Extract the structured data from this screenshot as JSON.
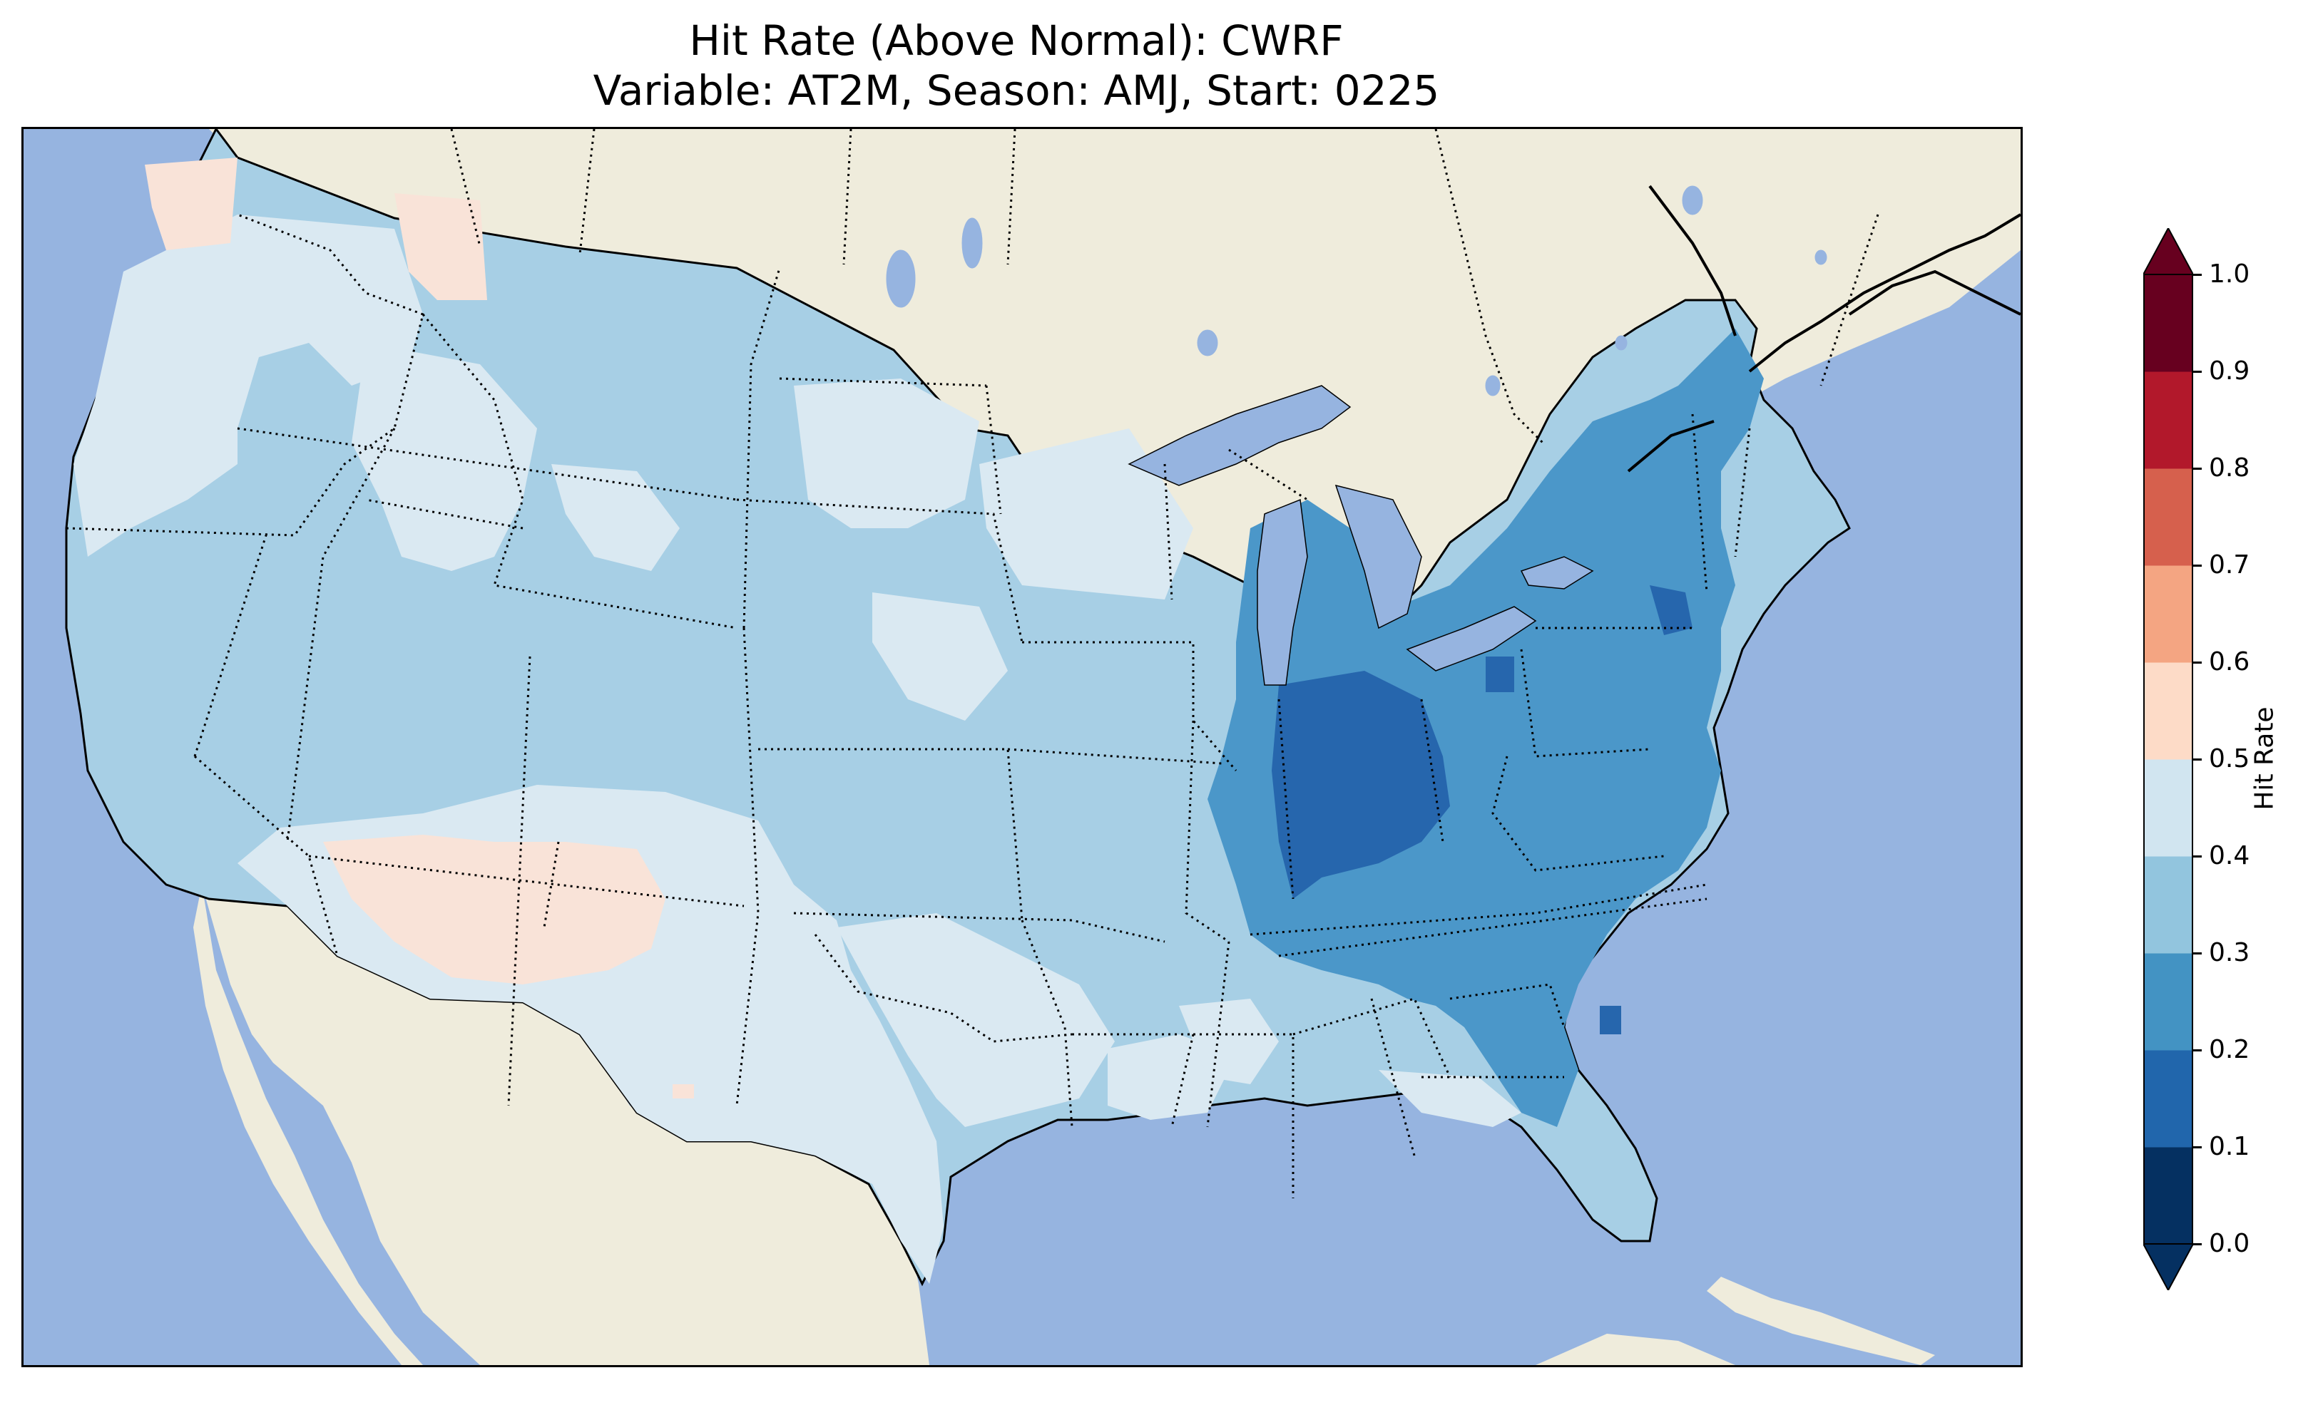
{
  "title": {
    "line1": "Hit Rate (Above Normal): CWRF",
    "line2": "Variable: AT2M, Season: AMJ, Start: 0225"
  },
  "map": {
    "projection": "Lambert Conformal, contiguous United States",
    "ocean_color": "#96b4e0",
    "land_color": "#efecdc",
    "state_borders": "dotted",
    "coastlines": "solid black",
    "field": {
      "variable": "AT2M",
      "season": "AMJ",
      "start": "0225",
      "dominant_range": "0.3-0.4",
      "regions": [
        {
          "region": "Pacific Northwest coast",
          "range": "0.5-0.6"
        },
        {
          "region": "Idaho / western Montana",
          "range": "0.5-0.6"
        },
        {
          "region": "Oregon, Washington, western Nevada",
          "range": "0.4-0.5"
        },
        {
          "region": "Arizona / western New Mexico",
          "range": "0.5-0.6"
        },
        {
          "region": "Texas / eastern New Mexico",
          "range": "0.4-0.5"
        },
        {
          "region": "Northern Plains, Great Basin, Rockies",
          "range": "0.3-0.4"
        },
        {
          "region": "Ohio Valley, Northeast, Carolinas, Georgia",
          "range": "0.2-0.3"
        },
        {
          "region": "Indiana / western Ohio",
          "range": "0.1-0.2"
        },
        {
          "region": "Florida",
          "range": "0.3-0.4"
        }
      ]
    }
  },
  "colorbar": {
    "label": "Hit Rate",
    "ticks": [
      "0.0",
      "0.1",
      "0.2",
      "0.3",
      "0.4",
      "0.5",
      "0.6",
      "0.7",
      "0.8",
      "0.9",
      "1.0"
    ],
    "colors": [
      "#053061",
      "#2166ac",
      "#4393c3",
      "#92c5de",
      "#d1e5f0",
      "#fddbc7",
      "#f4a582",
      "#d6604d",
      "#b2182b",
      "#67001f"
    ],
    "extend_low_color": "#053061",
    "extend_high_color": "#67001f"
  }
}
